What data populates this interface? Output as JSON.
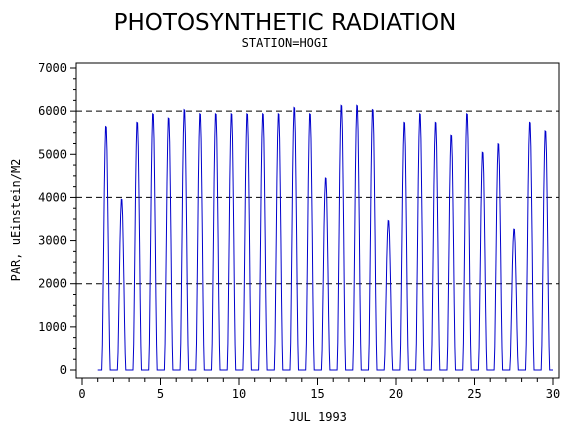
{
  "chart_data": {
    "type": "line",
    "title": "PHOTOSYNTHETIC RADIATION",
    "subtitle": "STATION=HOGI",
    "xlabel": "JUL 1993",
    "ylabel": "PAR, uEinstein/M2",
    "xlim": [
      0,
      30
    ],
    "ylim": [
      0,
      7000
    ],
    "x_ticks": [
      0,
      5,
      10,
      15,
      20,
      25,
      30
    ],
    "y_ticks": [
      0,
      1000,
      2000,
      3000,
      4000,
      5000,
      6000,
      7000
    ],
    "x_tick_labels": [
      "0",
      "5",
      "10",
      "15",
      "20",
      "25",
      "30"
    ],
    "y_tick_labels": [
      "0",
      "1000",
      "2000",
      "3000",
      "4000",
      "5000",
      "6000",
      "7000"
    ],
    "reference_lines": [
      2000,
      4000,
      6000
    ],
    "grid": false,
    "series_color": "#0000cc",
    "daily_peaks": [
      {
        "day": 1,
        "peak": 5700
      },
      {
        "day": 2,
        "peak": 4000
      },
      {
        "day": 3,
        "peak": 5800
      },
      {
        "day": 4,
        "peak": 6000
      },
      {
        "day": 5,
        "peak": 5900
      },
      {
        "day": 6,
        "peak": 6100
      },
      {
        "day": 7,
        "peak": 6000
      },
      {
        "day": 8,
        "peak": 6000
      },
      {
        "day": 9,
        "peak": 6000
      },
      {
        "day": 10,
        "peak": 6000
      },
      {
        "day": 11,
        "peak": 6000
      },
      {
        "day": 12,
        "peak": 6000
      },
      {
        "day": 13,
        "peak": 6150
      },
      {
        "day": 14,
        "peak": 6000
      },
      {
        "day": 15,
        "peak": 4500
      },
      {
        "day": 16,
        "peak": 6200
      },
      {
        "day": 17,
        "peak": 6200
      },
      {
        "day": 18,
        "peak": 6100
      },
      {
        "day": 19,
        "peak": 3500
      },
      {
        "day": 20,
        "peak": 5800
      },
      {
        "day": 21,
        "peak": 6000
      },
      {
        "day": 22,
        "peak": 5800
      },
      {
        "day": 23,
        "peak": 5500
      },
      {
        "day": 24,
        "peak": 6000
      },
      {
        "day": 25,
        "peak": 5100
      },
      {
        "day": 26,
        "peak": 5300
      },
      {
        "day": 27,
        "peak": 3300
      },
      {
        "day": 28,
        "peak": 5800
      },
      {
        "day": 29,
        "peak": 5600
      }
    ]
  }
}
